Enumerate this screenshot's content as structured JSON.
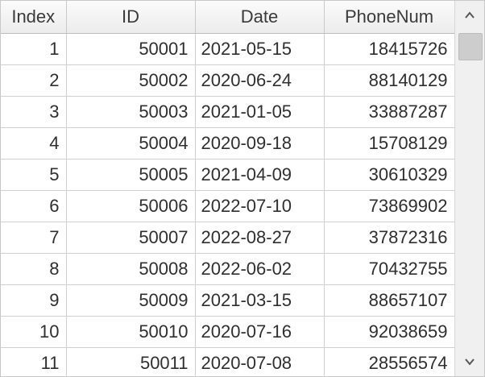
{
  "columns": [
    "Index",
    "ID",
    "Date",
    "PhoneNum"
  ],
  "rows": [
    [
      "1",
      "50001",
      "2021-05-15",
      "18415726"
    ],
    [
      "2",
      "50002",
      "2020-06-24",
      "88140129"
    ],
    [
      "3",
      "50003",
      "2021-01-05",
      "33887287"
    ],
    [
      "4",
      "50004",
      "2020-09-18",
      "15708129"
    ],
    [
      "5",
      "50005",
      "2021-04-09",
      "30610329"
    ],
    [
      "6",
      "50006",
      "2022-07-10",
      "73869902"
    ],
    [
      "7",
      "50007",
      "2022-08-27",
      "37872316"
    ],
    [
      "8",
      "50008",
      "2022-06-02",
      "70432755"
    ],
    [
      "9",
      "50009",
      "2021-03-15",
      "88657107"
    ],
    [
      "10",
      "50010",
      "2020-07-16",
      "92038659"
    ],
    [
      "11",
      "50011",
      "2020-07-08",
      "28556574"
    ]
  ],
  "scrollbar": {
    "up_icon": "chevron-up-icon",
    "down_icon": "chevron-down-icon",
    "thumb_position_fraction": 0.0
  }
}
